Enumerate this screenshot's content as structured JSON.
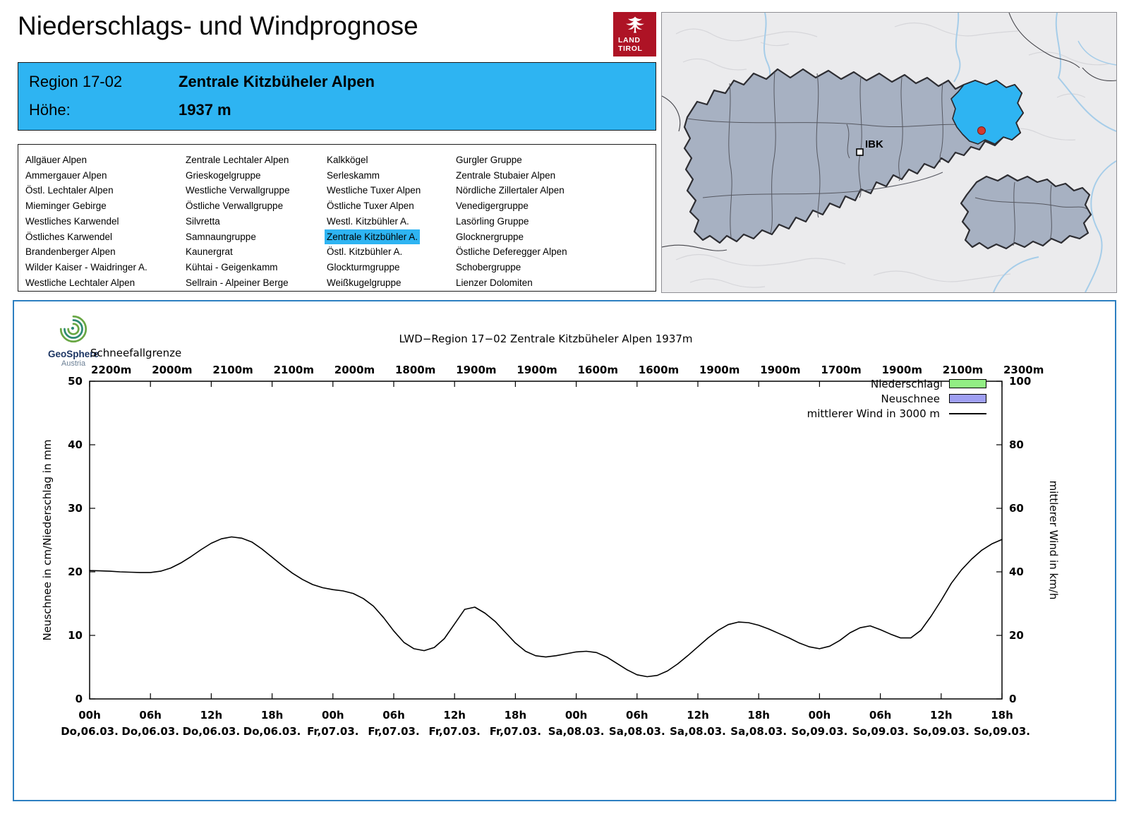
{
  "accent_color": "#2eb4f2",
  "header": {
    "title": "Niederschlags- und Windprognose",
    "logo_land": "LAND",
    "logo_tirol": "TIROL"
  },
  "region_box": {
    "region_label": "Region 17-02",
    "region_name": "Zentrale Kitzbüheler Alpen",
    "altitude_label": "Höhe:",
    "altitude_value": "1937 m"
  },
  "region_list": {
    "selected": "Zentrale Kitzbühler A.",
    "columns": [
      [
        "Allgäuer Alpen",
        "Ammergauer Alpen",
        "Östl. Lechtaler Alpen",
        "Mieminger Gebirge",
        "Westliches Karwendel",
        "Östliches Karwendel",
        "Brandenberger Alpen",
        "Wilder Kaiser - Waidringer A.",
        "Westliche Lechtaler Alpen"
      ],
      [
        "Zentrale Lechtaler Alpen",
        "Grieskogelgruppe",
        "Westliche Verwallgruppe",
        "Östliche Verwallgruppe",
        "Silvretta",
        "Samnaungruppe",
        "Kaunergrat",
        "Kühtai - Geigenkamm",
        "Sellrain - Alpeiner Berge"
      ],
      [
        "Kalkkögel",
        "Serleskamm",
        "Westliche Tuxer Alpen",
        "Östliche Tuxer Alpen",
        "Westl. Kitzbühler A.",
        "Zentrale Kitzbühler A.",
        "Östl. Kitzbühler A.",
        "Glockturmgruppe",
        "Weißkugelgruppe"
      ],
      [
        "Gurgler Gruppe",
        "Zentrale Stubaier Alpen",
        "Nördliche Zillertaler Alpen",
        "Venedigergruppe",
        "Lasörling Gruppe",
        "Glocknergruppe",
        "Östliche Deferegger Alpen",
        "Schobergruppe",
        "Lienzer Dolomiten"
      ]
    ]
  },
  "map": {
    "city_label": "IBK"
  },
  "chart": {
    "logo_name": "GeoSphere",
    "logo_sub": "Austria"
  },
  "chart_data": {
    "type": "line",
    "title": "LWD−Region 17−02 Zentrale Kitzbüheler Alpen 1937m",
    "snowline_label": "Schneefallgrenze",
    "snowline_values": [
      "2200m",
      "2000m",
      "2100m",
      "2100m",
      "2000m",
      "1800m",
      "1900m",
      "1900m",
      "1600m",
      "1600m",
      "1900m",
      "1900m",
      "1700m",
      "1900m",
      "2100m",
      "2300m"
    ],
    "ylabel_left": "Neuschnee in cm/Niederschlag in mm",
    "ylabel_right": "mittlerer Wind in km/h",
    "ylim_left": [
      0,
      50
    ],
    "ylim_right": [
      0,
      100
    ],
    "yticks_left": [
      0,
      10,
      20,
      30,
      40,
      50
    ],
    "yticks_right": [
      0,
      20,
      40,
      60,
      80,
      100
    ],
    "x_hours_total": 90,
    "xtick_hours": [
      "00h",
      "06h",
      "12h",
      "18h",
      "00h",
      "06h",
      "12h",
      "18h",
      "00h",
      "06h",
      "12h",
      "18h",
      "00h",
      "06h",
      "12h",
      "18h"
    ],
    "xtick_days": [
      "Do,06.03.",
      "Do,06.03.",
      "Do,06.03.",
      "Do,06.03.",
      "Fr,07.03.",
      "Fr,07.03.",
      "Fr,07.03.",
      "Fr,07.03.",
      "Sa,08.03.",
      "Sa,08.03.",
      "Sa,08.03.",
      "Sa,08.03.",
      "So,09.03.",
      "So,09.03.",
      "So,09.03.",
      "So,09.03."
    ],
    "legend": [
      {
        "label": "Niederschlag",
        "swatch": "box",
        "color": "#92ee84"
      },
      {
        "label": "Neuschnee",
        "swatch": "box",
        "color": "#9f9ff2"
      },
      {
        "label": "mittlerer Wind in 3000 m",
        "swatch": "line",
        "color": "#000000"
      }
    ],
    "series": [
      {
        "name": "Niederschlag",
        "unit": "mm",
        "axis": "left",
        "values": []
      },
      {
        "name": "Neuschnee",
        "unit": "cm",
        "axis": "left",
        "values": []
      },
      {
        "name": "mittlerer Wind in 3000 m",
        "unit": "km/h",
        "axis": "right",
        "hours_start": 0,
        "hours_step": 1,
        "values": [
          40.4,
          40.3,
          40.2,
          40.0,
          39.9,
          39.8,
          39.8,
          40.2,
          41.2,
          42.8,
          44.8,
          47.0,
          49.0,
          50.4,
          51.0,
          50.6,
          49.4,
          47.2,
          44.6,
          42.0,
          39.6,
          37.6,
          36.0,
          35.0,
          34.4,
          34.0,
          33.2,
          31.6,
          29.2,
          25.6,
          21.4,
          17.8,
          15.8,
          15.2,
          16.2,
          19.0,
          23.6,
          28.2,
          28.9,
          27.0,
          24.4,
          21.0,
          17.6,
          15.0,
          13.6,
          13.2,
          13.6,
          14.2,
          14.8,
          15.0,
          14.6,
          13.2,
          11.2,
          9.2,
          7.6,
          7.0,
          7.4,
          8.8,
          11.0,
          13.6,
          16.4,
          19.2,
          21.6,
          23.4,
          24.2,
          24.0,
          23.2,
          22.0,
          20.6,
          19.2,
          17.6,
          16.4,
          15.8,
          16.6,
          18.4,
          20.8,
          22.4,
          23.0,
          21.8,
          20.4,
          19.2,
          19.2,
          21.6,
          26.0,
          31.0,
          36.4,
          40.6,
          44.0,
          46.8,
          48.8,
          50.2
        ]
      }
    ]
  }
}
